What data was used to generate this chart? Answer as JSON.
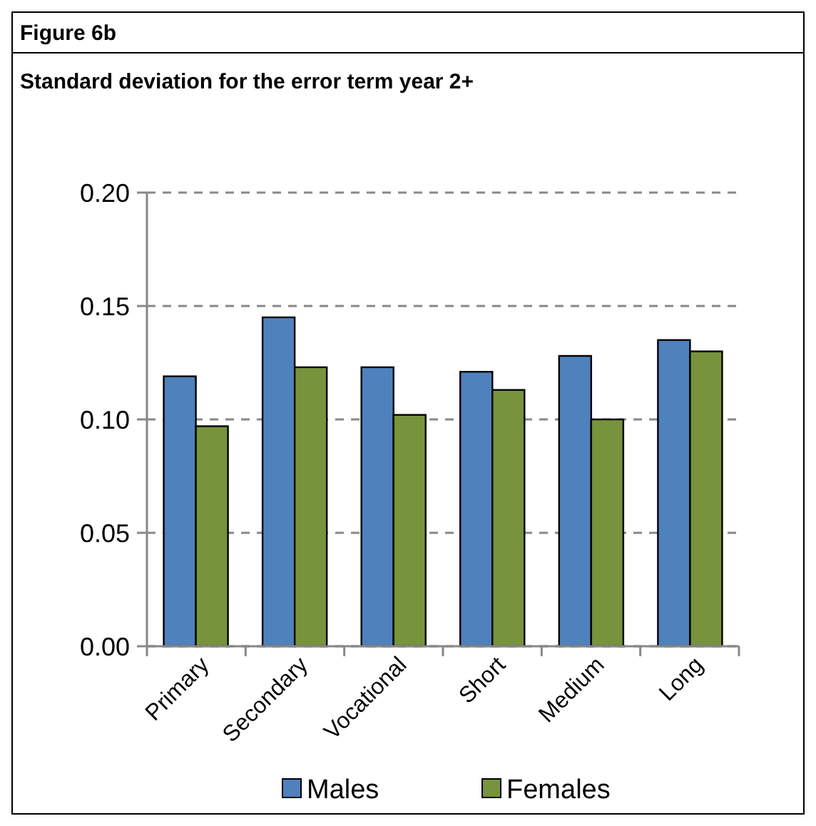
{
  "chart_data": {
    "type": "bar",
    "title": "Figure 6b",
    "subtitle": "Standard deviation for the error term year 2+",
    "categories": [
      "Primary",
      "Secondary",
      "Vocational",
      "Short",
      "Medium",
      "Long"
    ],
    "series": [
      {
        "name": "Males",
        "color": "#4f81bd",
        "values": [
          0.119,
          0.145,
          0.123,
          0.121,
          0.128,
          0.135
        ]
      },
      {
        "name": "Females",
        "color": "#77933c",
        "values": [
          0.097,
          0.123,
          0.102,
          0.113,
          0.1,
          0.13
        ]
      }
    ],
    "ylim": [
      0,
      0.2
    ],
    "yticks": [
      {
        "value": 0,
        "label": "0.00"
      },
      {
        "value": 0.05,
        "label": "0.05"
      },
      {
        "value": 0.1,
        "label": "0.10"
      },
      {
        "value": 0.15,
        "label": "0.15"
      },
      {
        "value": 0.2,
        "label": "0.20"
      }
    ],
    "grid": "y",
    "legend": "bottom"
  }
}
